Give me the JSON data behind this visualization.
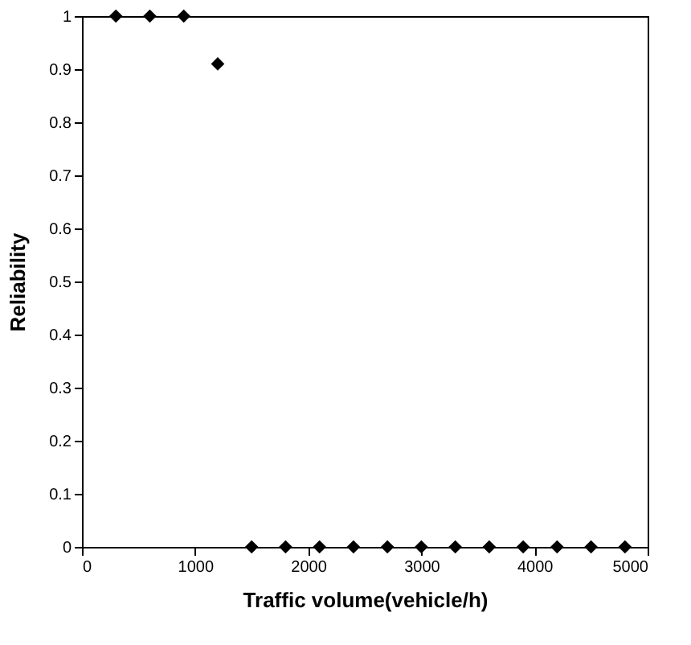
{
  "chart_data": {
    "type": "scatter",
    "xlabel": "Traffic volume(vehicle/h)",
    "ylabel": "Reliability",
    "x": [
      300,
      600,
      900,
      1200,
      1500,
      1800,
      2100,
      2400,
      2700,
      3000,
      3300,
      3600,
      3900,
      4200,
      4500,
      4800
    ],
    "series": [
      {
        "color": "#000000",
        "values": [
          1,
          1,
          1,
          0.91,
          0,
          0,
          0,
          0,
          0,
          0,
          0,
          0,
          0,
          0,
          0,
          0
        ]
      }
    ],
    "xlim": [
      0,
      5000
    ],
    "xticks": [
      0,
      1000,
      2000,
      3000,
      4000,
      5000
    ],
    "ylim": [
      0,
      1
    ],
    "yticks": [
      0,
      0.1,
      0.2,
      0.3,
      0.4,
      0.5,
      0.6,
      0.7,
      0.8,
      0.9,
      1
    ],
    "grid": false,
    "legend": false,
    "marker": "diamond"
  }
}
